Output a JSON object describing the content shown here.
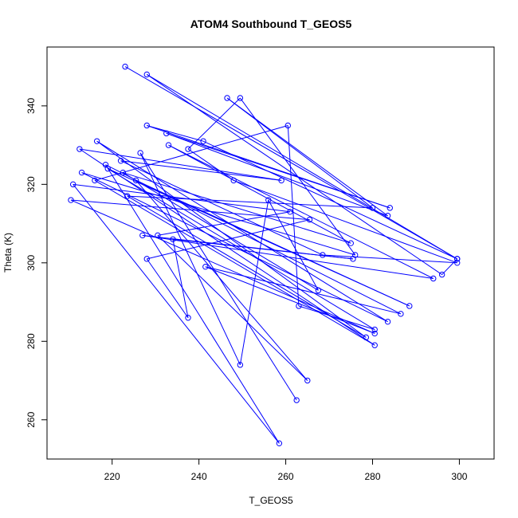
{
  "chart_data": {
    "type": "line",
    "title": "ATOM4 Southbound T_GEOS5",
    "xlabel": "T_GEOS5",
    "ylabel": "Theta (K)",
    "xlim": [
      205,
      308
    ],
    "ylim": [
      250,
      355
    ],
    "x_ticks": [
      220,
      240,
      260,
      280,
      300
    ],
    "y_ticks": [
      260,
      280,
      300,
      320,
      340
    ],
    "grid": false,
    "legend": "none",
    "color": "#0000ff",
    "marker": "open-circle",
    "series": [
      {
        "x": [
          223.0,
          299.5,
          296.0,
          228.0,
          299.5,
          241.0,
          228.0,
          284.0,
          232.5,
          283.5,
          246.5,
          280.0,
          223.5,
          278.5,
          216.5,
          283.5,
          213.0,
          276.0,
          249.5,
          237.5,
          248.0,
          299.5,
          268.5,
          222.0,
          259.0,
          212.5,
          280.5,
          216.0,
          260.5,
          263.0,
          280.5,
          219.0,
          288.5,
          225.5,
          265.0,
          230.5,
          261.0,
          211.0,
          258.5,
          218.5,
          286.5,
          241.5,
          280.5,
          210.5,
          265.5,
          228.0,
          237.5,
          234.0,
          275.5,
          227.0,
          294.0,
          233.0,
          275.0,
          222.5,
          267.5,
          256.0,
          249.5,
          226.5,
          262.5
        ],
        "y": [
          350,
          301,
          297,
          348,
          301,
          331,
          335,
          314,
          333,
          312,
          342,
          314,
          317,
          281,
          331,
          285,
          323,
          302,
          342,
          329,
          321,
          300,
          302,
          326,
          321,
          329,
          279,
          321,
          335,
          289,
          283,
          324,
          289,
          321,
          270,
          307,
          313,
          320,
          254,
          325,
          287,
          299,
          282,
          316,
          311,
          301,
          286,
          306,
          301,
          307,
          296,
          330,
          305,
          323,
          293,
          316,
          274,
          328,
          265
        ]
      }
    ]
  }
}
